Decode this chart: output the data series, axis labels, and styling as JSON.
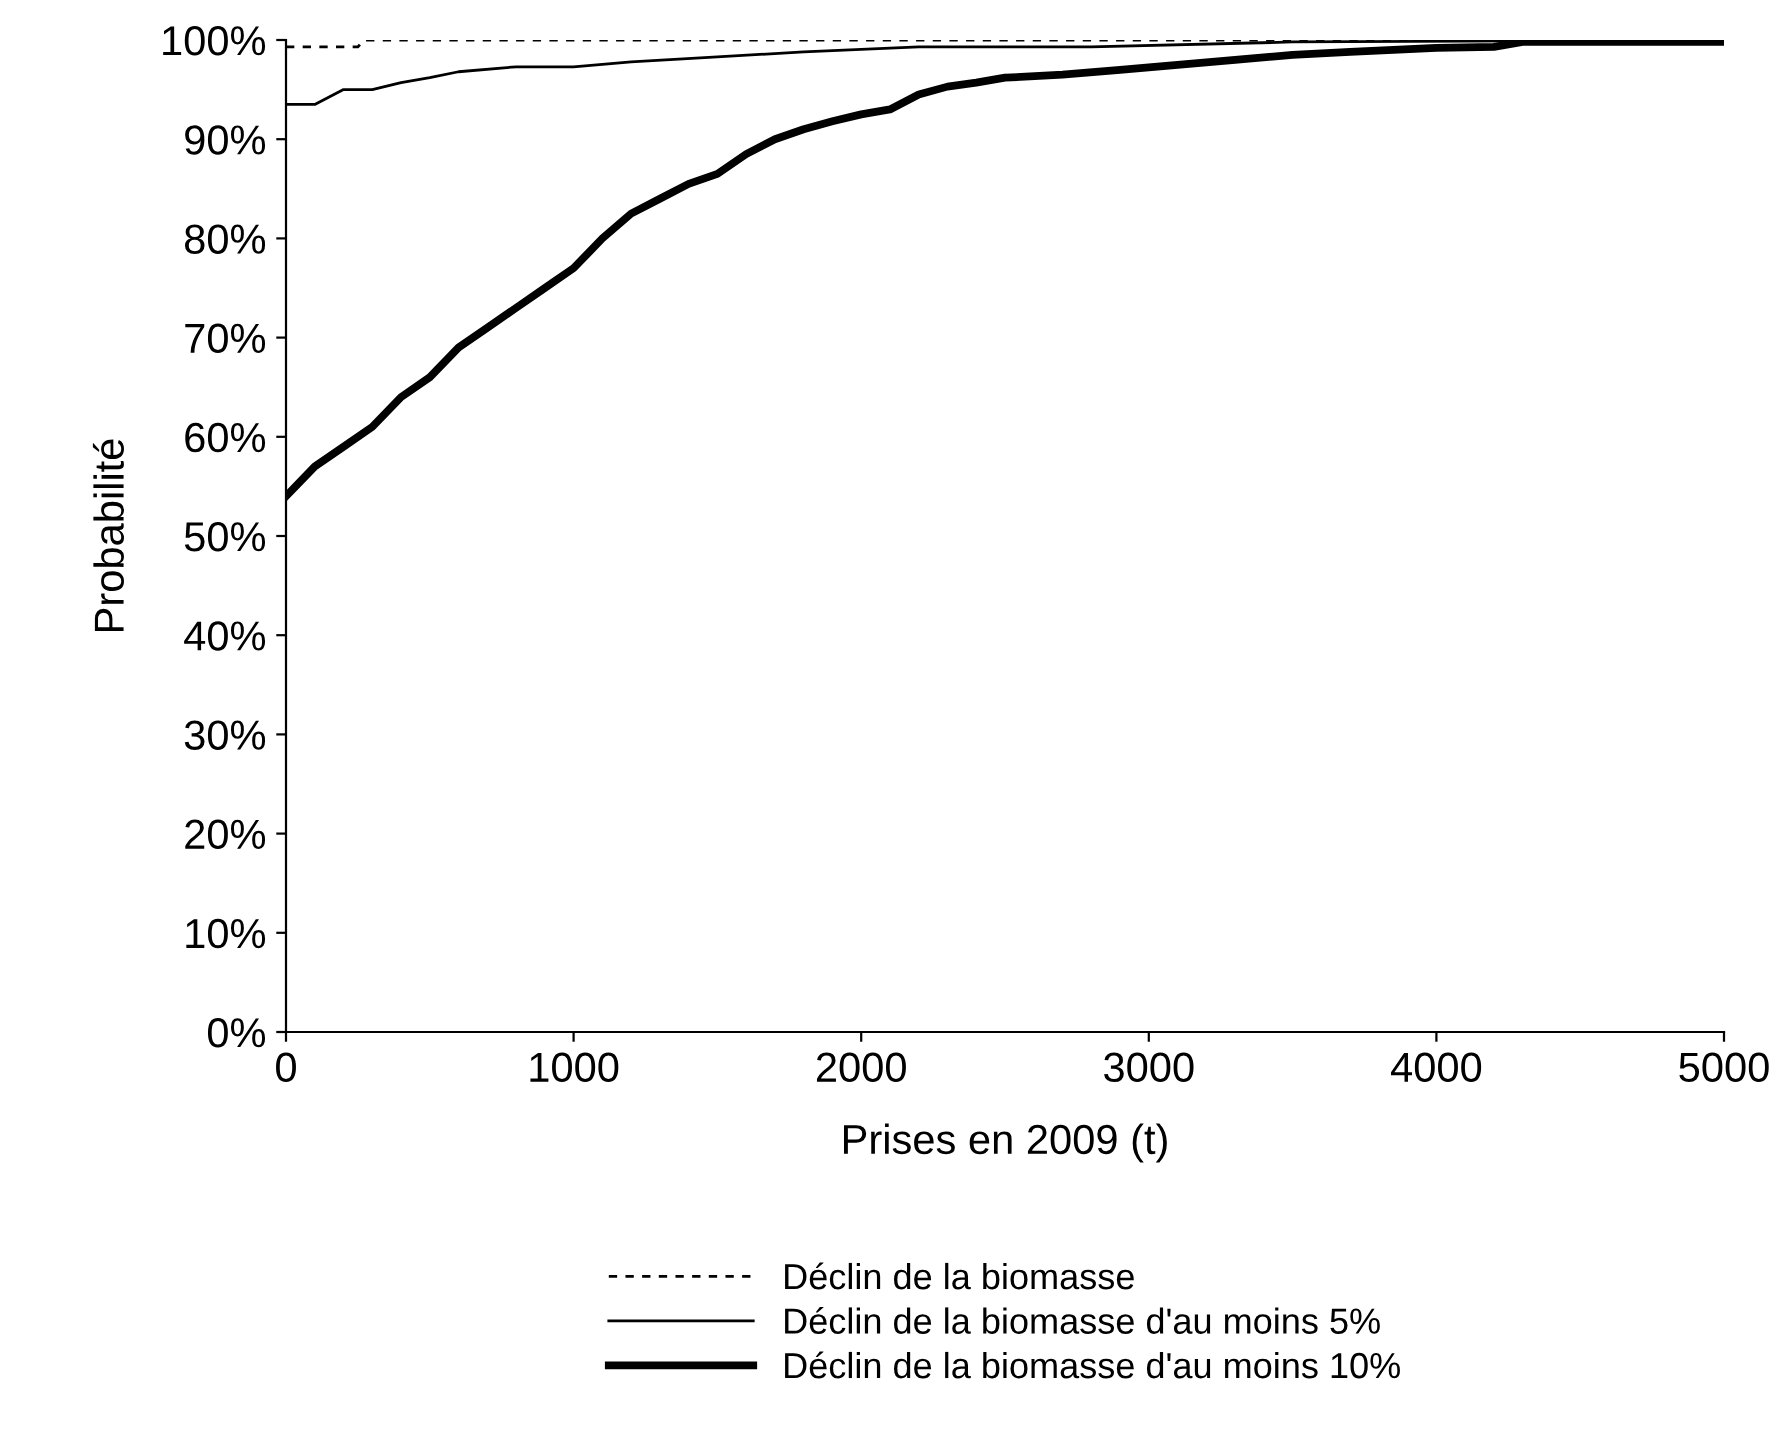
{
  "chart_data": {
    "type": "line",
    "xlabel": "Prises en 2009 (t)",
    "ylabel": "Probabilité",
    "xlim": [
      0,
      5000
    ],
    "xticks": [
      0,
      1000,
      2000,
      3000,
      4000,
      5000
    ],
    "ylim": [
      0,
      100
    ],
    "yticks": [
      {
        "value": 0,
        "label": "0%"
      },
      {
        "value": 10,
        "label": "10%"
      },
      {
        "value": 20,
        "label": "20%"
      },
      {
        "value": 30,
        "label": "30%"
      },
      {
        "value": 40,
        "label": "40%"
      },
      {
        "value": 50,
        "label": "50%"
      },
      {
        "value": 60,
        "label": "60%"
      },
      {
        "value": 70,
        "label": "70%"
      },
      {
        "value": 80,
        "label": "80%"
      },
      {
        "value": 90,
        "label": "90%"
      },
      {
        "value": 100,
        "label": "100%"
      }
    ],
    "grid": false,
    "legend": "bottom",
    "series": [
      {
        "name": "Déclin de la biomasse",
        "color": "#000000",
        "line_style": "dotted",
        "x": [
          0,
          250,
          270,
          1300,
          5000
        ],
        "values": [
          99.3,
          99.3,
          100,
          100,
          100
        ]
      },
      {
        "name": "Déclin de la biomasse d'au moins 5%",
        "color": "#000000",
        "line_style": "solid",
        "x": [
          0,
          100,
          200,
          300,
          400,
          500,
          600,
          800,
          1000,
          1200,
          1500,
          1800,
          2200,
          2800,
          3500,
          5000
        ],
        "values": [
          93.5,
          93.5,
          95,
          95,
          95.7,
          96.2,
          96.8,
          97.3,
          97.3,
          97.8,
          98.3,
          98.8,
          99.3,
          99.3,
          99.8,
          100
        ]
      },
      {
        "name": "Déclin de la biomasse d'au moins 10%",
        "color": "#000000",
        "line_style": "solid",
        "x": [
          0,
          100,
          200,
          300,
          400,
          500,
          600,
          700,
          800,
          900,
          1000,
          1100,
          1200,
          1300,
          1400,
          1500,
          1600,
          1700,
          1800,
          1900,
          2000,
          2100,
          2200,
          2300,
          2400,
          2500,
          2700,
          2900,
          3100,
          3300,
          3500,
          3700,
          4000,
          4200,
          4300,
          5000
        ],
        "values": [
          54,
          57,
          59,
          61,
          64,
          66,
          69,
          71,
          73,
          75,
          77,
          80,
          82.5,
          84,
          85.5,
          86.5,
          88.5,
          90,
          91,
          91.8,
          92.5,
          93,
          94.5,
          95.3,
          95.7,
          96.2,
          96.5,
          97,
          97.5,
          98,
          98.5,
          98.8,
          99.2,
          99.3,
          99.8,
          99.8
        ]
      }
    ]
  }
}
